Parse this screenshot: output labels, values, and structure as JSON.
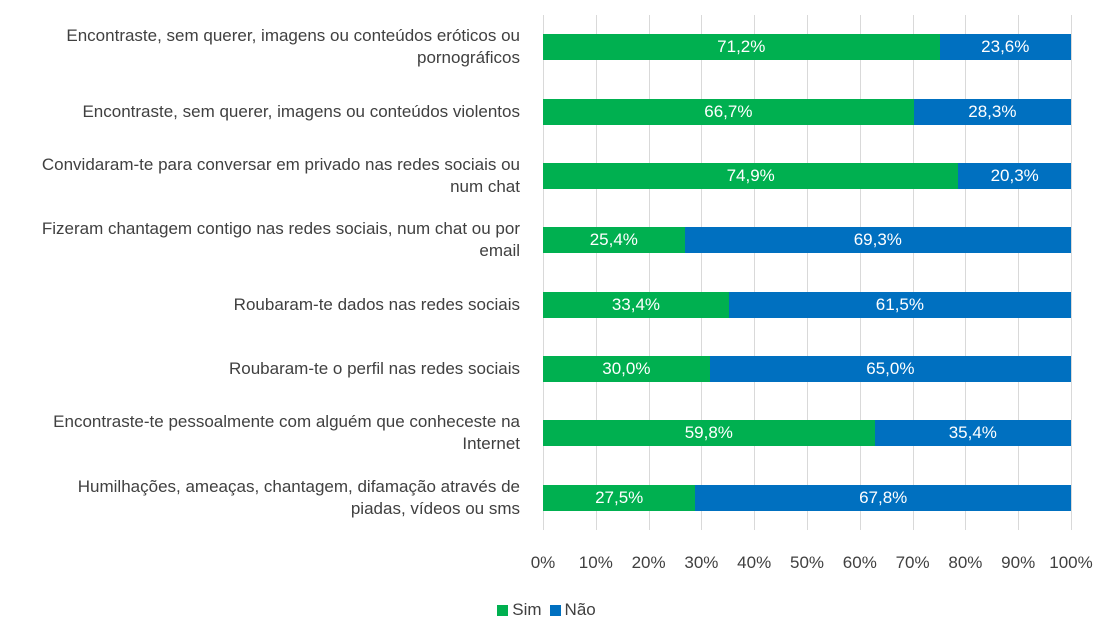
{
  "chart_data": {
    "type": "bar",
    "orientation": "horizontal",
    "stacked": "percent",
    "categories": [
      "Encontraste, sem querer, imagens ou conteúdos eróticos ou pornográficos",
      "Encontraste, sem querer, imagens ou conteúdos violentos",
      "Convidaram-te para conversar em privado nas redes sociais ou num chat",
      "Fizeram chantagem contigo nas redes sociais, num chat ou por email",
      "Roubaram-te dados nas redes sociais",
      "Roubaram-te o perfil nas redes sociais",
      "Encontraste-te pessoalmente com alguém que conheceste na Internet",
      "Humilhações, ameaças, chantagem, difamação através de piadas, vídeos ou sms"
    ],
    "series": [
      {
        "name": "Sim",
        "color": "#00b050",
        "values": [
          71.2,
          66.7,
          74.9,
          25.4,
          33.4,
          30.0,
          59.8,
          27.5
        ],
        "value_labels": [
          "71,2%",
          "66,7%",
          "74,9%",
          "25,4%",
          "33,4%",
          "30,0%",
          "59,8%",
          "27,5%"
        ]
      },
      {
        "name": "Não",
        "color": "#0070c0",
        "values": [
          23.6,
          28.3,
          20.3,
          69.3,
          61.5,
          65.0,
          35.4,
          67.8
        ],
        "value_labels": [
          "23,6%",
          "28,3%",
          "20,3%",
          "69,3%",
          "61,5%",
          "65,0%",
          "35,4%",
          "67,8%"
        ]
      }
    ],
    "xlim": [
      0,
      100
    ],
    "xticks": [
      {
        "value": 0,
        "label": "0%"
      },
      {
        "value": 10,
        "label": "10%"
      },
      {
        "value": 20,
        "label": "20%"
      },
      {
        "value": 30,
        "label": "30%"
      },
      {
        "value": 40,
        "label": "40%"
      },
      {
        "value": 50,
        "label": "50%"
      },
      {
        "value": 60,
        "label": "60%"
      },
      {
        "value": 70,
        "label": "70%"
      },
      {
        "value": 80,
        "label": "80%"
      },
      {
        "value": 90,
        "label": "90%"
      },
      {
        "value": 100,
        "label": "100%"
      }
    ],
    "grid": true,
    "legend": "bottom"
  }
}
